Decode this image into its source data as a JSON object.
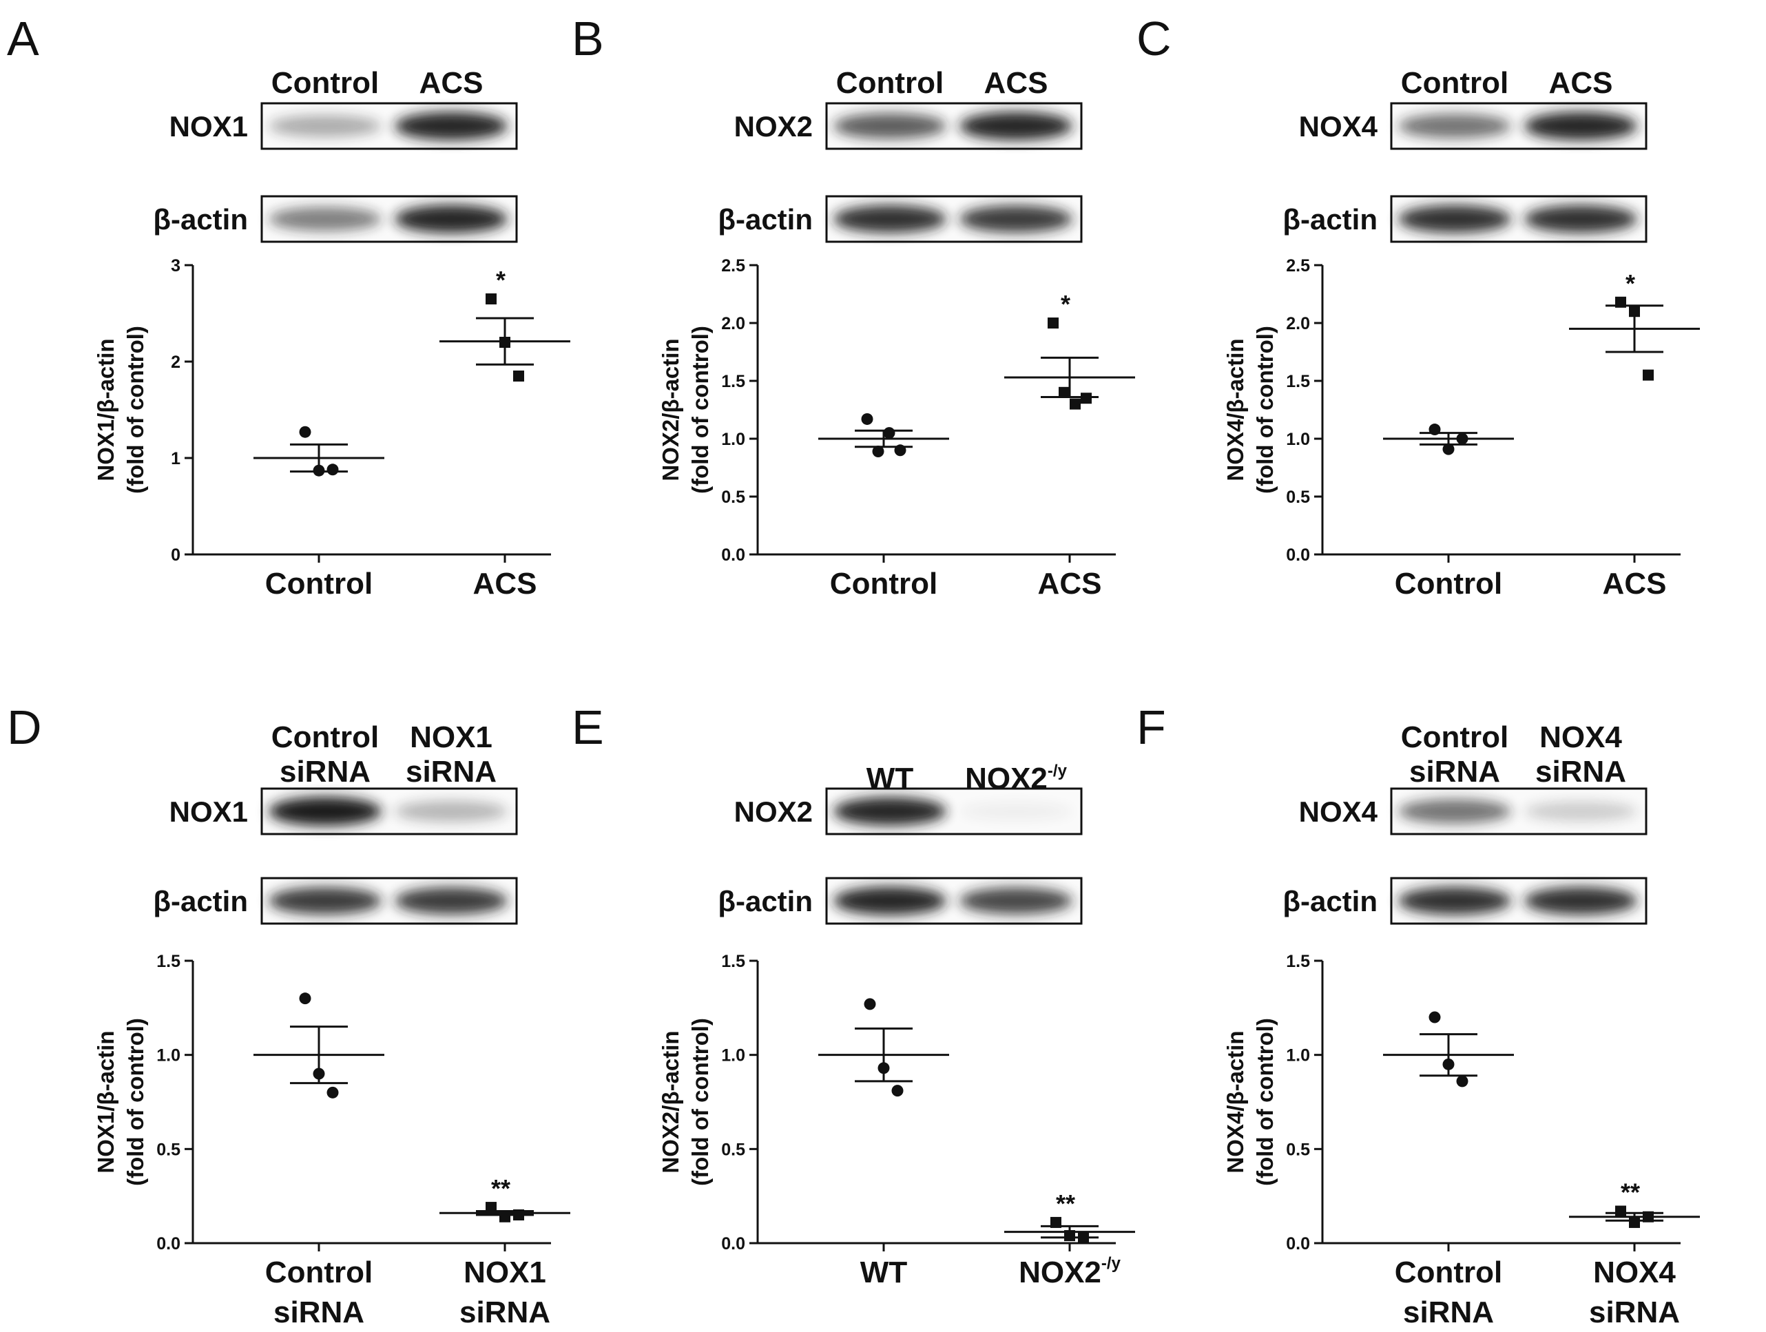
{
  "chart_data": [
    {
      "panel": "A",
      "type": "scatter",
      "lanes": [
        [
          "Control"
        ],
        [
          "ACS"
        ]
      ],
      "blots": [
        {
          "label": "NOX1",
          "bands": [
            0.35,
            0.95
          ]
        },
        {
          "label": "β-actin",
          "bands": [
            0.55,
            0.95
          ]
        }
      ],
      "ylabel": [
        "NOX1/β-actin",
        "(fold of control)"
      ],
      "yticks": [
        "0",
        "1",
        "2",
        "3"
      ],
      "ylim": [
        0,
        3
      ],
      "categories": [
        {
          "lines": [
            "Control"
          ]
        },
        {
          "lines": [
            "ACS"
          ]
        }
      ],
      "groups": [
        {
          "marker": "circle",
          "mean": 1.0,
          "sem": 0.14,
          "points": [
            1.27,
            0.87,
            0.88
          ],
          "sig": ""
        },
        {
          "marker": "square",
          "mean": 2.21,
          "sem": 0.24,
          "points": [
            2.65,
            2.2,
            1.85
          ],
          "sig": "*"
        }
      ]
    },
    {
      "panel": "B",
      "type": "scatter",
      "lanes": [
        [
          "Control"
        ],
        [
          "ACS"
        ]
      ],
      "blots": [
        {
          "label": "NOX2",
          "bands": [
            0.7,
            0.95
          ]
        },
        {
          "label": "β-actin",
          "bands": [
            0.9,
            0.85
          ]
        }
      ],
      "ylabel": [
        "NOX2/β-actin",
        "(fold of control)"
      ],
      "yticks": [
        "0.0",
        "0.5",
        "1.0",
        "1.5",
        "2.0",
        "2.5"
      ],
      "ylim": [
        0,
        2.5
      ],
      "categories": [
        {
          "lines": [
            "Control"
          ]
        },
        {
          "lines": [
            "ACS"
          ]
        }
      ],
      "groups": [
        {
          "marker": "circle",
          "mean": 1.0,
          "sem": 0.07,
          "points": [
            1.17,
            0.89,
            1.05,
            0.9
          ],
          "sig": ""
        },
        {
          "marker": "square",
          "mean": 1.53,
          "sem": 0.17,
          "points": [
            2.0,
            1.4,
            1.3,
            1.35
          ],
          "sig": "*"
        }
      ]
    },
    {
      "panel": "C",
      "type": "scatter",
      "lanes": [
        [
          "Control"
        ],
        [
          "ACS"
        ]
      ],
      "blots": [
        {
          "label": "NOX4",
          "bands": [
            0.6,
            0.95
          ]
        },
        {
          "label": "β-actin",
          "bands": [
            0.9,
            0.9
          ]
        }
      ],
      "ylabel": [
        "NOX4/β-actin",
        "(fold of control)"
      ],
      "yticks": [
        "0.0",
        "0.5",
        "1.0",
        "1.5",
        "2.0",
        "2.5"
      ],
      "ylim": [
        0,
        2.5
      ],
      "categories": [
        {
          "lines": [
            "Control"
          ]
        },
        {
          "lines": [
            "ACS"
          ]
        }
      ],
      "groups": [
        {
          "marker": "circle",
          "mean": 1.0,
          "sem": 0.05,
          "points": [
            1.08,
            0.91,
            1.0
          ],
          "sig": ""
        },
        {
          "marker": "square",
          "mean": 1.95,
          "sem": 0.2,
          "points": [
            2.18,
            2.1,
            1.55
          ],
          "sig": "*"
        }
      ]
    },
    {
      "panel": "D",
      "type": "scatter",
      "lanes": [
        [
          "Control",
          "siRNA"
        ],
        [
          "NOX1",
          "siRNA"
        ]
      ],
      "blots": [
        {
          "label": "NOX1",
          "bands": [
            1.0,
            0.3
          ]
        },
        {
          "label": "β-actin",
          "bands": [
            0.85,
            0.85
          ]
        }
      ],
      "ylabel": [
        "NOX1/β-actin",
        "(fold of control)"
      ],
      "yticks": [
        "0.0",
        "0.5",
        "1.0",
        "1.5"
      ],
      "ylim": [
        0,
        1.5
      ],
      "categories": [
        {
          "lines": [
            "Control",
            "siRNA"
          ]
        },
        {
          "lines": [
            "NOX1",
            "siRNA"
          ]
        }
      ],
      "groups": [
        {
          "marker": "circle",
          "mean": 1.0,
          "sem": 0.15,
          "points": [
            1.3,
            0.9,
            0.8
          ],
          "sig": ""
        },
        {
          "marker": "square",
          "mean": 0.16,
          "sem": 0.01,
          "points": [
            0.19,
            0.14,
            0.15
          ],
          "sig": "**"
        }
      ]
    },
    {
      "panel": "E",
      "type": "scatter",
      "lanes": [
        [
          "WT"
        ],
        [
          "NOX2"
        ]
      ],
      "lane_sup": [
        "",
        "-/y"
      ],
      "blots": [
        {
          "label": "NOX2",
          "bands": [
            0.95,
            0.03
          ]
        },
        {
          "label": "β-actin",
          "bands": [
            0.95,
            0.8
          ]
        }
      ],
      "ylabel": [
        "NOX2/β-actin",
        "(fold of control)"
      ],
      "yticks": [
        "0.0",
        "0.5",
        "1.0",
        "1.5"
      ],
      "ylim": [
        0,
        1.5
      ],
      "categories": [
        {
          "lines": [
            "WT"
          ]
        },
        {
          "lines": [
            "NOX2"
          ],
          "sup": "-/y"
        }
      ],
      "groups": [
        {
          "marker": "circle",
          "mean": 1.0,
          "sem": 0.14,
          "points": [
            1.27,
            0.93,
            0.81
          ],
          "sig": ""
        },
        {
          "marker": "square",
          "mean": 0.06,
          "sem": 0.03,
          "points": [
            0.11,
            0.04,
            0.03
          ],
          "sig": "**"
        }
      ]
    },
    {
      "panel": "F",
      "type": "scatter",
      "lanes": [
        [
          "Control",
          "siRNA"
        ],
        [
          "NOX4",
          "siRNA"
        ]
      ],
      "blots": [
        {
          "label": "NOX4",
          "bands": [
            0.6,
            0.2
          ]
        },
        {
          "label": "β-actin",
          "bands": [
            0.9,
            0.9
          ]
        }
      ],
      "ylabel": [
        "NOX4/β-actin",
        "(fold of control)"
      ],
      "yticks": [
        "0.0",
        "0.5",
        "1.0",
        "1.5"
      ],
      "ylim": [
        0,
        1.5
      ],
      "categories": [
        {
          "lines": [
            "Control",
            "siRNA"
          ]
        },
        {
          "lines": [
            "NOX4",
            "siRNA"
          ]
        }
      ],
      "groups": [
        {
          "marker": "circle",
          "mean": 1.0,
          "sem": 0.11,
          "points": [
            1.2,
            0.95,
            0.86
          ],
          "sig": ""
        },
        {
          "marker": "square",
          "mean": 0.14,
          "sem": 0.02,
          "points": [
            0.17,
            0.11,
            0.14
          ],
          "sig": "**"
        }
      ]
    }
  ]
}
